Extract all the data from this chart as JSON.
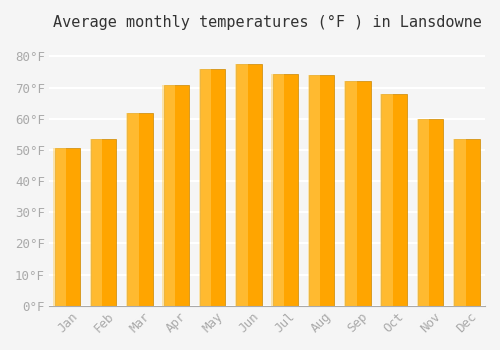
{
  "title": "Average monthly temperatures (°F ) in Lansdowne",
  "months": [
    "Jan",
    "Feb",
    "Mar",
    "Apr",
    "May",
    "Jun",
    "Jul",
    "Aug",
    "Sep",
    "Oct",
    "Nov",
    "Dec"
  ],
  "values": [
    50.5,
    53.5,
    62,
    71,
    76,
    77.5,
    74.5,
    74,
    72,
    68,
    60,
    53.5
  ],
  "bar_color": "#FFA500",
  "bar_edge_color": "#CC8800",
  "ylim": [
    0,
    85
  ],
  "yticks": [
    0,
    10,
    20,
    30,
    40,
    50,
    60,
    70,
    80
  ],
  "ytick_labels": [
    "0°F",
    "10°F",
    "20°F",
    "30°F",
    "40°F",
    "50°F",
    "60°F",
    "70°F",
    "80°F"
  ],
  "background_color": "#f5f5f5",
  "grid_color": "#ffffff",
  "title_fontsize": 11,
  "tick_fontsize": 9,
  "tick_color": "#aaaaaa"
}
